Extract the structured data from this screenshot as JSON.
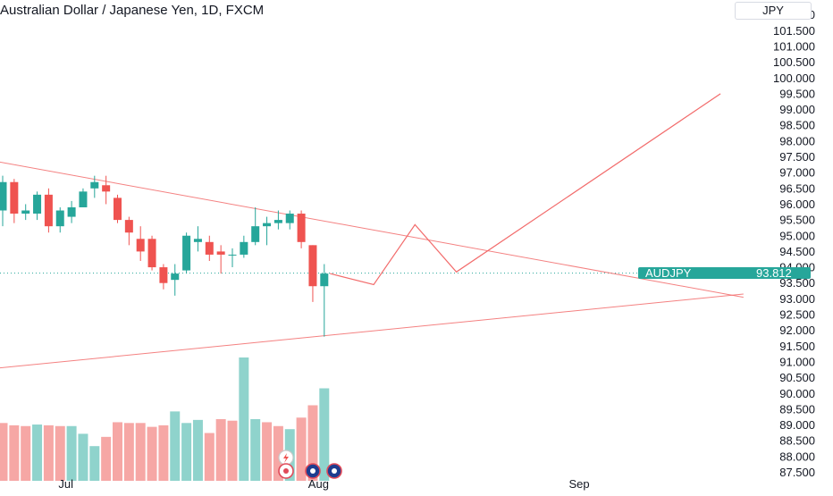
{
  "header": {
    "title": "Australian Dollar / Japanese Yen, 1D, FXCM",
    "currency": "JPY"
  },
  "price_tag": {
    "symbol": "AUDJPY",
    "value": "93.812"
  },
  "colors": {
    "up": "#26a69a",
    "down": "#ef5350",
    "volume_up": "#8fd3cc",
    "volume_down": "#f6a7a5",
    "drawing": "#f26b6b",
    "tag_bg": "#26a69a"
  },
  "chart_data": {
    "type": "candlestick",
    "title": "Australian Dollar / Japanese Yen, 1D, FXCM",
    "yaxis_unit": "JPY",
    "ylim": [
      87.5,
      102.2
    ],
    "y_ticks": [
      87.5,
      88.0,
      88.5,
      89.0,
      89.5,
      90.0,
      90.5,
      91.0,
      91.5,
      92.0,
      92.5,
      93.0,
      93.5,
      94.0,
      94.5,
      95.0,
      95.5,
      96.0,
      96.5,
      97.0,
      97.5,
      98.0,
      98.5,
      99.0,
      99.5,
      100.0,
      100.5,
      101.0,
      101.5,
      102.0
    ],
    "y_tick_labels": [
      "87.500",
      "88.000",
      "88.500",
      "89.000",
      "89.500",
      "90.000",
      "90.500",
      "91.000",
      "91.500",
      "92.000",
      "92.500",
      "93.000",
      "93.500",
      "94.000",
      "94.500",
      "95.000",
      "95.500",
      "96.000",
      "96.500",
      "97.000",
      "97.500",
      "98.000",
      "98.500",
      "99.000",
      "99.500",
      "100.000",
      "100.500",
      "101.000",
      "101.500",
      "102.000"
    ],
    "x_ticks": [
      {
        "label": "Jul",
        "bar": 5.5
      },
      {
        "label": "Aug",
        "bar": 27.5
      },
      {
        "label": "Sep",
        "bar": 50.2
      }
    ],
    "candles": [
      {
        "open": 95.8,
        "high": 96.9,
        "low": 95.3,
        "close": 96.7
      },
      {
        "open": 96.7,
        "high": 96.8,
        "low": 95.4,
        "close": 95.7
      },
      {
        "open": 95.7,
        "high": 96.0,
        "low": 95.5,
        "close": 95.8
      },
      {
        "open": 95.7,
        "high": 96.4,
        "low": 95.5,
        "close": 96.3
      },
      {
        "open": 96.3,
        "high": 96.5,
        "low": 95.1,
        "close": 95.3
      },
      {
        "open": 95.3,
        "high": 95.9,
        "low": 95.1,
        "close": 95.8
      },
      {
        "open": 95.6,
        "high": 96.1,
        "low": 95.4,
        "close": 95.9
      },
      {
        "open": 95.9,
        "high": 96.5,
        "low": 95.9,
        "close": 96.4
      },
      {
        "open": 96.5,
        "high": 96.9,
        "low": 96.2,
        "close": 96.7
      },
      {
        "open": 96.6,
        "high": 96.9,
        "low": 96.0,
        "close": 96.4
      },
      {
        "open": 96.2,
        "high": 96.3,
        "low": 95.4,
        "close": 95.5
      },
      {
        "open": 95.5,
        "high": 95.6,
        "low": 94.7,
        "close": 95.1
      },
      {
        "open": 94.9,
        "high": 95.3,
        "low": 94.2,
        "close": 94.5
      },
      {
        "open": 94.9,
        "high": 95.0,
        "low": 93.9,
        "close": 94.0
      },
      {
        "open": 94.0,
        "high": 94.1,
        "low": 93.3,
        "close": 93.5
      },
      {
        "open": 93.6,
        "high": 94.1,
        "low": 93.1,
        "close": 93.8
      },
      {
        "open": 93.9,
        "high": 95.1,
        "low": 93.8,
        "close": 95.0
      },
      {
        "open": 94.8,
        "high": 95.3,
        "low": 94.5,
        "close": 94.9
      },
      {
        "open": 94.8,
        "high": 95.0,
        "low": 94.2,
        "close": 94.4
      },
      {
        "open": 94.5,
        "high": 94.7,
        "low": 93.8,
        "close": 94.4
      },
      {
        "open": 94.4,
        "high": 94.6,
        "low": 94.0,
        "close": 94.4
      },
      {
        "open": 94.4,
        "high": 95.0,
        "low": 94.3,
        "close": 94.8
      },
      {
        "open": 94.8,
        "high": 95.9,
        "low": 94.7,
        "close": 95.3
      },
      {
        "open": 95.3,
        "high": 95.6,
        "low": 94.7,
        "close": 95.4
      },
      {
        "open": 95.4,
        "high": 95.8,
        "low": 95.2,
        "close": 95.5
      },
      {
        "open": 95.4,
        "high": 95.8,
        "low": 95.2,
        "close": 95.7
      },
      {
        "open": 95.7,
        "high": 95.8,
        "low": 94.6,
        "close": 94.8
      },
      {
        "open": 94.7,
        "high": 94.7,
        "low": 92.9,
        "close": 93.4
      },
      {
        "open": 93.4,
        "high": 94.1,
        "low": 91.8,
        "close": 93.8
      }
    ],
    "volume": [
      {
        "value": 75,
        "up": false
      },
      {
        "value": 72,
        "up": false
      },
      {
        "value": 71,
        "up": false
      },
      {
        "value": 73,
        "up": true
      },
      {
        "value": 72,
        "up": false
      },
      {
        "value": 71,
        "up": false
      },
      {
        "value": 71,
        "up": true
      },
      {
        "value": 61,
        "up": true
      },
      {
        "value": 45,
        "up": true
      },
      {
        "value": 57,
        "up": false
      },
      {
        "value": 76,
        "up": false
      },
      {
        "value": 75,
        "up": false
      },
      {
        "value": 75,
        "up": false
      },
      {
        "value": 70,
        "up": false
      },
      {
        "value": 72,
        "up": false
      },
      {
        "value": 90,
        "up": true
      },
      {
        "value": 75,
        "up": true
      },
      {
        "value": 79,
        "up": true
      },
      {
        "value": 62,
        "up": false
      },
      {
        "value": 80,
        "up": false
      },
      {
        "value": 78,
        "up": false
      },
      {
        "value": 160,
        "up": true
      },
      {
        "value": 80,
        "up": true
      },
      {
        "value": 76,
        "up": false
      },
      {
        "value": 71,
        "up": false
      },
      {
        "value": 67,
        "up": true
      },
      {
        "value": 82,
        "up": false
      },
      {
        "value": 98,
        "up": false
      },
      {
        "value": 120,
        "up": true
      }
    ],
    "volume_max": 160,
    "trendlines": [
      {
        "name": "upper-trendline",
        "from": [
          -0.5,
          97.35
        ],
        "to": [
          64.5,
          93.05
        ]
      },
      {
        "name": "lower-trendline",
        "from": [
          -0.5,
          90.8
        ],
        "to": [
          64.5,
          93.15
        ]
      }
    ],
    "projection_path": [
      [
        28.5,
        93.8
      ],
      [
        32.3,
        93.45
      ],
      [
        35.9,
        95.35
      ],
      [
        39.5,
        93.85
      ],
      [
        62.5,
        99.5
      ]
    ],
    "last_price": 93.812
  }
}
